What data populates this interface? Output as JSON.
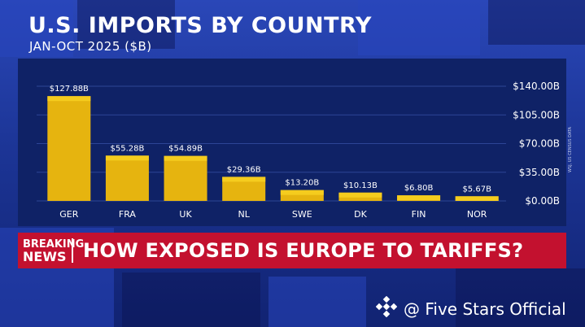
{
  "title": "U.S. IMPORTS BY COUNTRY",
  "subtitle": "JAN-OCT 2025 ($B)",
  "source_note": "WSJ, US CENSUS DATA",
  "banner": {
    "badge_line1": "BREAKING",
    "badge_line2": "NEWS",
    "headline": "HOW EXPOSED IS EUROPE TO TARIFFS?"
  },
  "watermark": {
    "text": "@ Five Stars Official",
    "icon": "diamond-logo-icon"
  },
  "colors": {
    "bar": "#e6b40f",
    "bar_top": "#f5cc1e",
    "panel": "#0f2266",
    "gridline": "#2d4596",
    "banner": "#c3112f",
    "text": "#ffffff"
  },
  "chart_data": {
    "type": "bar",
    "title": "U.S. IMPORTS BY COUNTRY",
    "subtitle": "JAN-OCT 2025 ($B)",
    "categories": [
      "GER",
      "FRA",
      "UK",
      "NL",
      "SWE",
      "DK",
      "FIN",
      "NOR"
    ],
    "values": [
      127.88,
      55.28,
      54.89,
      29.36,
      13.2,
      10.13,
      6.8,
      5.67
    ],
    "data_labels": [
      "$127.88B",
      "$55.28B",
      "$54.89B",
      "$29.36B",
      "$13.20B",
      "$10.13B",
      "$6.80B",
      "$5.67B"
    ],
    "y_ticks": [
      0,
      35,
      70,
      105,
      140
    ],
    "y_tick_labels": [
      "$0.00B",
      "$35.00B",
      "$70.00B",
      "$105.00B",
      "$140.00B"
    ],
    "ylim": [
      0,
      140
    ],
    "y_axis_position": "right",
    "grid": true,
    "legend": "none"
  }
}
